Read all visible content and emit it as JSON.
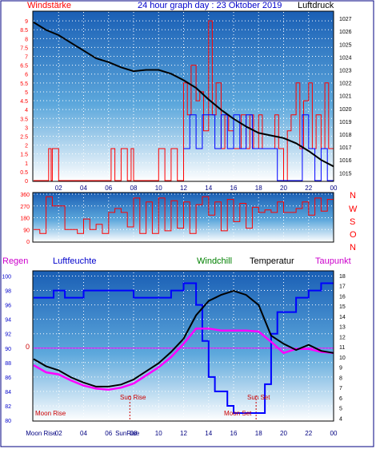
{
  "header": {
    "left_label": "Windstärke",
    "title": "24 hour graph day : 23 Oktober 2019",
    "right_label": "Luftdruck"
  },
  "labels_bottom": {
    "regen": "Regen",
    "luftfeuchte": "Luftfeuchte",
    "windchill": "Windchill",
    "temperatur": "Temperatur",
    "taupunkt": "Taupunkt"
  },
  "direction_letters": [
    "N",
    "W",
    "S",
    "O",
    "N"
  ],
  "colors": {
    "wind_red": "#ff0000",
    "gust_blue": "#0000ff",
    "pressure_black": "#000000",
    "title_blue": "#0000cc",
    "humidity_blue": "#0000ff",
    "dewpoint_magenta": "#ff00ff",
    "windchill_green": "#008000",
    "grid_dots": "#ffffff"
  },
  "annotations": {
    "moon_rise": "Moon Rise",
    "moon_set": "Moon Set",
    "sun_rise": "Sun Rise",
    "sun_set": "Sun Set",
    "moon_rise_x": "Moon Rise",
    "sunrise_x": "SunRise",
    "zero_line": "0"
  },
  "chart_data": [
    {
      "type": "line",
      "title": "24 hour graph day : 23 Oktober 2019",
      "x_tick_labels": [
        "02",
        "04",
        "06",
        "08",
        "10",
        "12",
        "14",
        "16",
        "18",
        "20",
        "22",
        "00"
      ],
      "left_axis": {
        "label": "Windstärke",
        "ticks": [
          "0",
          "0.5",
          "1",
          "1.5",
          "2",
          "2.5",
          "3",
          "3.5",
          "4",
          "4.5",
          "5",
          "5.5",
          "6",
          "6.5",
          "7",
          "7.5",
          "8",
          "8.5",
          "9"
        ],
        "ylim": [
          0,
          9.5
        ]
      },
      "right_axis": {
        "label": "Luftdruck",
        "ticks": [
          "1015",
          "1016",
          "1017",
          "1018",
          "1019",
          "1020",
          "1021",
          "1022",
          "1023",
          "1024",
          "1025",
          "1026",
          "1027"
        ],
        "ylim": [
          1014.4,
          1027.5
        ]
      },
      "series": [
        {
          "name": "Luftdruck",
          "axis": "right",
          "x": [
            0,
            1,
            2,
            3,
            4,
            5,
            6,
            7,
            8,
            9,
            10,
            11,
            12,
            13,
            14,
            15,
            16,
            17,
            18,
            19,
            20,
            21,
            22,
            23,
            24
          ],
          "values": [
            1026.7,
            1026.1,
            1025.7,
            1025.1,
            1024.5,
            1023.9,
            1023.6,
            1023.2,
            1022.9,
            1023.0,
            1023.0,
            1022.7,
            1022.2,
            1021.6,
            1020.7,
            1019.9,
            1019.2,
            1018.6,
            1018.1,
            1017.9,
            1017.7,
            1017.3,
            1016.7,
            1016.0,
            1015.5
          ]
        },
        {
          "name": "Wind",
          "axis": "left",
          "x": [
            0,
            1,
            1.2,
            1.4,
            1.5,
            2,
            3,
            4,
            5,
            6,
            6.2,
            6.5,
            7,
            7.5,
            7.8,
            8,
            9,
            10,
            10.5,
            11,
            11.5,
            12,
            12.3,
            12.6,
            13,
            13.3,
            13.6,
            14,
            14.3,
            14.6,
            15,
            15.3,
            15.6,
            16,
            16.3,
            16.6,
            17,
            17.3,
            17.6,
            18,
            18.3,
            18.6,
            19,
            19.3,
            19.6,
            20,
            20.3,
            20.6,
            21,
            21.3,
            21.6,
            22,
            22.3,
            22.6,
            23,
            23.3,
            23.6,
            24
          ],
          "values": [
            0,
            0,
            1.8,
            0,
            1.8,
            0,
            0,
            0,
            0,
            0,
            1.8,
            0,
            1.8,
            0,
            1.8,
            0,
            0,
            1.8,
            0,
            1.8,
            0,
            5.5,
            3.7,
            6.5,
            4.5,
            5.0,
            2.8,
            9.0,
            3.7,
            5.5,
            1.8,
            3.7,
            2.8,
            1.8,
            1.8,
            3.7,
            1.8,
            3.7,
            1.8,
            3.7,
            1.8,
            1.8,
            1.8,
            3.7,
            1.8,
            0,
            2.8,
            3.7,
            5.5,
            1.8,
            4.5,
            5.5,
            1.8,
            3.7,
            1.8,
            5.5,
            1.8,
            2.8
          ]
        },
        {
          "name": "Böen",
          "axis": "left",
          "x": [
            12,
            12.5,
            13,
            13.5,
            14,
            14.5,
            15,
            15.5,
            16,
            16.5,
            17,
            17.5,
            18,
            18.5,
            19,
            19.5,
            20,
            20.5,
            21,
            21.5,
            22,
            22.5,
            23,
            23.5,
            24
          ],
          "values": [
            1.8,
            3.7,
            1.8,
            3.7,
            3.7,
            1.8,
            3.7,
            1.8,
            3.7,
            1.8,
            3.7,
            1.8,
            1.8,
            1.8,
            1.8,
            0,
            0,
            0,
            0,
            3.7,
            1.8,
            0,
            1.8,
            0,
            1.8
          ]
        }
      ]
    },
    {
      "type": "line",
      "title": "",
      "x_tick_labels": [
        "02",
        "04",
        "06",
        "08",
        "10",
        "12",
        "14",
        "16",
        "18",
        "20",
        "22",
        "00"
      ],
      "left_axis": {
        "ticks": [
          "0",
          "90",
          "180",
          "270",
          "360"
        ],
        "ylim": [
          0,
          360
        ]
      },
      "right_axis": {
        "ticks": [
          "N",
          "W",
          "S",
          "O",
          "N"
        ]
      },
      "series": [
        {
          "name": "Windrichtung",
          "x": [
            0,
            0.5,
            1,
            1.5,
            2,
            2.5,
            3,
            3.5,
            4,
            4.5,
            5,
            5.5,
            6,
            6.5,
            7,
            7.5,
            8,
            8.5,
            9,
            9.5,
            10,
            10.5,
            11,
            11.5,
            12,
            12.5,
            13,
            13.5,
            14,
            14.5,
            15,
            15.5,
            16,
            16.5,
            17,
            17.5,
            18,
            18.5,
            19,
            19.5,
            20,
            20.5,
            21,
            21.5,
            22,
            22.5,
            23,
            23.5,
            24
          ],
          "values": [
            90,
            60,
            340,
            270,
            270,
            90,
            90,
            60,
            170,
            90,
            130,
            60,
            220,
            250,
            220,
            110,
            330,
            60,
            300,
            60,
            330,
            80,
            310,
            100,
            300,
            60,
            280,
            340,
            200,
            300,
            80,
            320,
            150,
            290,
            100,
            260,
            220,
            240,
            220,
            300,
            220,
            220,
            250,
            300,
            200,
            330,
            230,
            320,
            250
          ]
        }
      ]
    },
    {
      "type": "line",
      "title": "",
      "x_tick_labels": [
        "Moon Rise",
        "02",
        "04",
        "06",
        "08",
        "SunRise",
        "10",
        "12",
        "14",
        "16",
        "18",
        "20",
        "22",
        "00"
      ],
      "left_axis": {
        "ticks": [
          "80",
          "82",
          "84",
          "86",
          "88",
          "90",
          "92",
          "94",
          "96",
          "98",
          "100"
        ],
        "ylim": [
          80,
          100.5
        ]
      },
      "right_axis": {
        "ticks": [
          "4",
          "5",
          "6",
          "7",
          "8",
          "9",
          "10",
          "11",
          "12",
          "13",
          "14",
          "15",
          "16",
          "17",
          "18"
        ],
        "ylim": [
          3.8,
          18.3
        ]
      },
      "series": [
        {
          "name": "Luftfeuchte",
          "axis": "left",
          "x": [
            0,
            1,
            1.6,
            2.5,
            4,
            6,
            8,
            9,
            10,
            11,
            12,
            12.5,
            13,
            13.5,
            14,
            14.5,
            15,
            15.5,
            16,
            17,
            18,
            18.5,
            19,
            19.5,
            20,
            21,
            22,
            23,
            24
          ],
          "values": [
            97,
            97,
            98,
            97,
            98,
            98,
            97,
            97,
            97,
            98,
            99,
            99,
            96,
            91,
            86,
            84,
            84,
            82,
            81,
            81,
            81,
            85,
            92,
            95,
            95,
            97,
            98,
            99,
            99
          ]
        },
        {
          "name": "Temperatur",
          "axis": "right",
          "x": [
            0,
            1,
            2,
            3,
            4,
            5,
            6,
            7,
            8,
            9,
            10,
            11,
            12,
            13,
            14,
            15,
            16,
            17,
            18,
            19,
            20,
            21,
            22,
            23,
            24
          ],
          "values": [
            9.8,
            9.1,
            8.7,
            8.0,
            7.5,
            7.1,
            7.1,
            7.3,
            7.8,
            8.6,
            9.4,
            10.5,
            11.8,
            14.1,
            15.5,
            16.1,
            16.5,
            16.1,
            15.1,
            12.1,
            11.3,
            10.7,
            11.2,
            10.6,
            10.4
          ]
        },
        {
          "name": "Taupunkt",
          "axis": "right",
          "x": [
            0,
            1,
            2,
            3,
            4,
            5,
            6,
            7,
            8,
            9,
            10,
            11,
            12,
            13,
            14,
            15,
            16,
            17,
            18,
            19,
            20,
            21,
            22,
            23,
            24
          ],
          "values": [
            9.2,
            8.5,
            8.3,
            7.7,
            7.2,
            6.9,
            6.8,
            7.0,
            7.4,
            8.2,
            9.0,
            10.0,
            11.3,
            12.8,
            12.8,
            12.6,
            12.6,
            12.6,
            12.5,
            11.5,
            10.4,
            10.8,
            10.8,
            10.5,
            10.4
          ]
        }
      ]
    }
  ]
}
